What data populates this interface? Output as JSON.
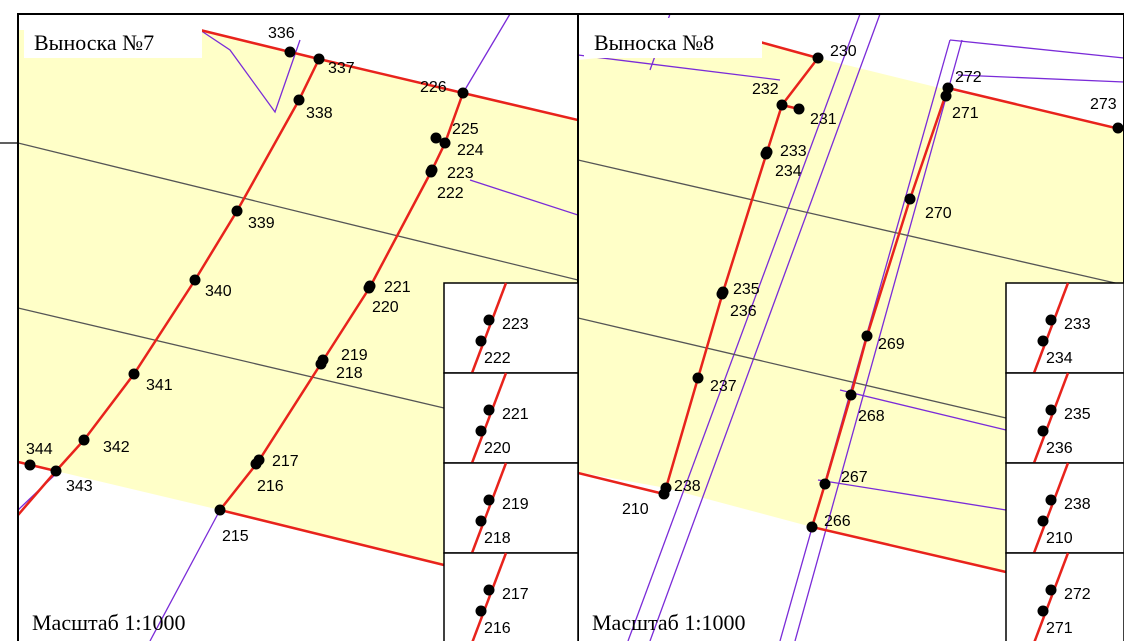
{
  "panels": [
    {
      "title": "Выноска №7",
      "scale": "Масштаб 1:1000",
      "points": [
        "336",
        "337",
        "338",
        "226",
        "225",
        "224",
        "223",
        "222",
        "339",
        "221",
        "220",
        "340",
        "219",
        "218",
        "341",
        "342",
        "344",
        "343",
        "217",
        "216",
        "215"
      ],
      "insets": [
        [
          "223",
          "222"
        ],
        [
          "221",
          "220"
        ],
        [
          "219",
          "218"
        ],
        [
          "217",
          "216"
        ]
      ]
    },
    {
      "title": "Выноска №8",
      "scale": "Масштаб 1:1000",
      "points": [
        "230",
        "232",
        "231",
        "233",
        "234",
        "272",
        "271",
        "273",
        "270",
        "235",
        "236",
        "269",
        "237",
        "268",
        "267",
        "238",
        "210",
        "266"
      ],
      "insets": [
        [
          "233",
          "234"
        ],
        [
          "235",
          "236"
        ],
        [
          "238",
          "210"
        ],
        [
          "272",
          "271"
        ]
      ]
    }
  ]
}
